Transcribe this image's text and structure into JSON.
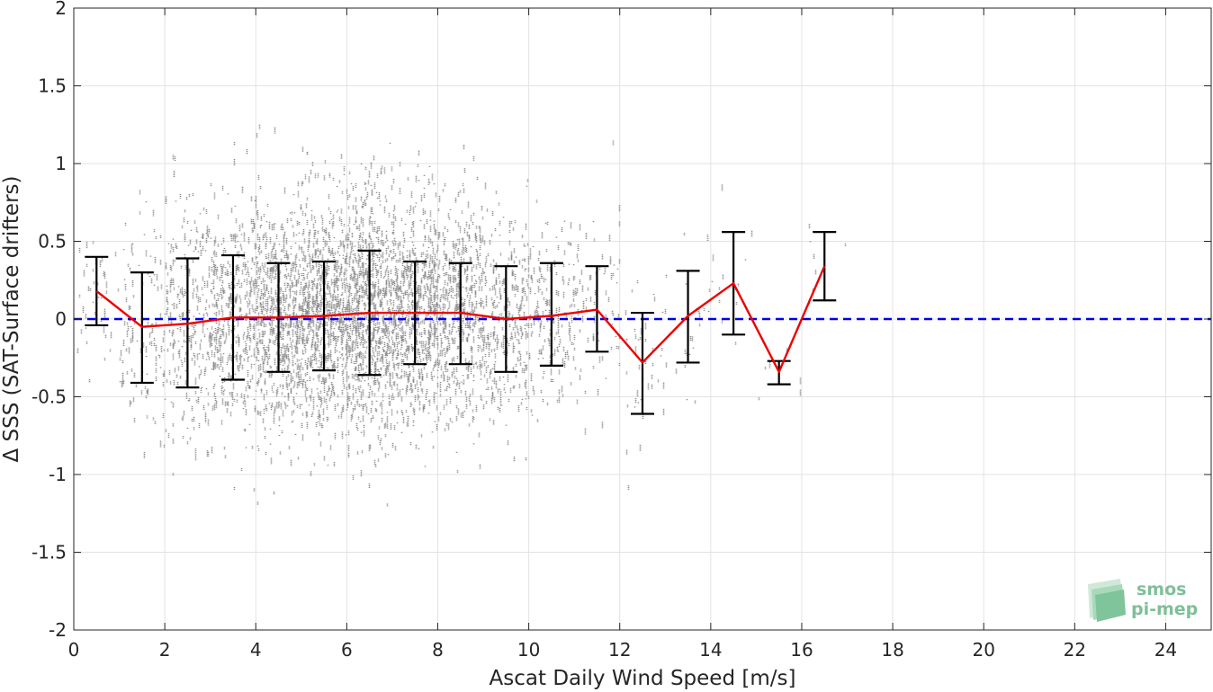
{
  "chart_data": {
    "type": "scatter",
    "title": "",
    "xlabel": "Ascat Daily Wind Speed [m/s]",
    "ylabel": "Δ SSS (SAT-Surface drifters)",
    "xlim": [
      0,
      25
    ],
    "ylim": [
      -2,
      2
    ],
    "xticks": [
      0,
      2,
      4,
      6,
      8,
      10,
      12,
      14,
      16,
      18,
      20,
      22,
      24
    ],
    "yticks": [
      -2,
      -1.5,
      -1,
      -0.5,
      0,
      0.5,
      1,
      1.5,
      2
    ],
    "xtick_labels": [
      "0",
      "2",
      "4",
      "6",
      "8",
      "10",
      "12",
      "14",
      "16",
      "18",
      "20",
      "22",
      "24"
    ],
    "ytick_labels": [
      "-2",
      "-1.5",
      "-1",
      "-0.5",
      "0",
      "0.5",
      "1",
      "1.5",
      "2"
    ],
    "grid": true,
    "zero_reference": {
      "y": 0,
      "color": "#0000ee",
      "style": "dashed"
    },
    "binned_mean": {
      "color": "#ee0000",
      "x": [
        0.5,
        1.5,
        2.5,
        3.5,
        4.5,
        5.5,
        6.5,
        7.5,
        8.5,
        9.5,
        10.5,
        11.5,
        12.5,
        13.5,
        14.5,
        15.5,
        16.5
      ],
      "y": [
        0.18,
        -0.05,
        -0.03,
        0.01,
        0.01,
        0.02,
        0.04,
        0.04,
        0.04,
        0.0,
        0.02,
        0.06,
        -0.28,
        0.02,
        0.23,
        -0.34,
        0.34
      ],
      "err_low": [
        -0.04,
        -0.41,
        -0.44,
        -0.39,
        -0.34,
        -0.33,
        -0.36,
        -0.29,
        -0.29,
        -0.34,
        -0.3,
        -0.21,
        -0.61,
        -0.28,
        -0.1,
        -0.42,
        0.12
      ],
      "err_high": [
        0.4,
        0.3,
        0.39,
        0.41,
        0.36,
        0.37,
        0.44,
        0.37,
        0.36,
        0.34,
        0.36,
        0.34,
        0.04,
        0.31,
        0.56,
        -0.27,
        0.56
      ]
    },
    "scatter_color": "#8c8c8c",
    "scatter_density": [
      {
        "x": 0.5,
        "n": 40,
        "sd": 0.24
      },
      {
        "x": 1.5,
        "n": 120,
        "sd": 0.34
      },
      {
        "x": 2.5,
        "n": 260,
        "sd": 0.4
      },
      {
        "x": 3.5,
        "n": 420,
        "sd": 0.4
      },
      {
        "x": 4.5,
        "n": 620,
        "sd": 0.36
      },
      {
        "x": 5.5,
        "n": 760,
        "sd": 0.36
      },
      {
        "x": 6.5,
        "n": 820,
        "sd": 0.4
      },
      {
        "x": 7.5,
        "n": 680,
        "sd": 0.34
      },
      {
        "x": 8.5,
        "n": 480,
        "sd": 0.34
      },
      {
        "x": 9.5,
        "n": 300,
        "sd": 0.34
      },
      {
        "x": 10.5,
        "n": 170,
        "sd": 0.32
      },
      {
        "x": 11.5,
        "n": 80,
        "sd": 0.28
      },
      {
        "x": 12.5,
        "n": 40,
        "sd": 0.32
      },
      {
        "x": 13.5,
        "n": 22,
        "sd": 0.3
      },
      {
        "x": 14.5,
        "n": 14,
        "sd": 0.3
      },
      {
        "x": 15.5,
        "n": 6,
        "sd": 0.1
      },
      {
        "x": 16.5,
        "n": 8,
        "sd": 0.2
      }
    ]
  },
  "logo": {
    "line1": "smos",
    "line2": "pi-mep",
    "color": "#7fbf98"
  }
}
